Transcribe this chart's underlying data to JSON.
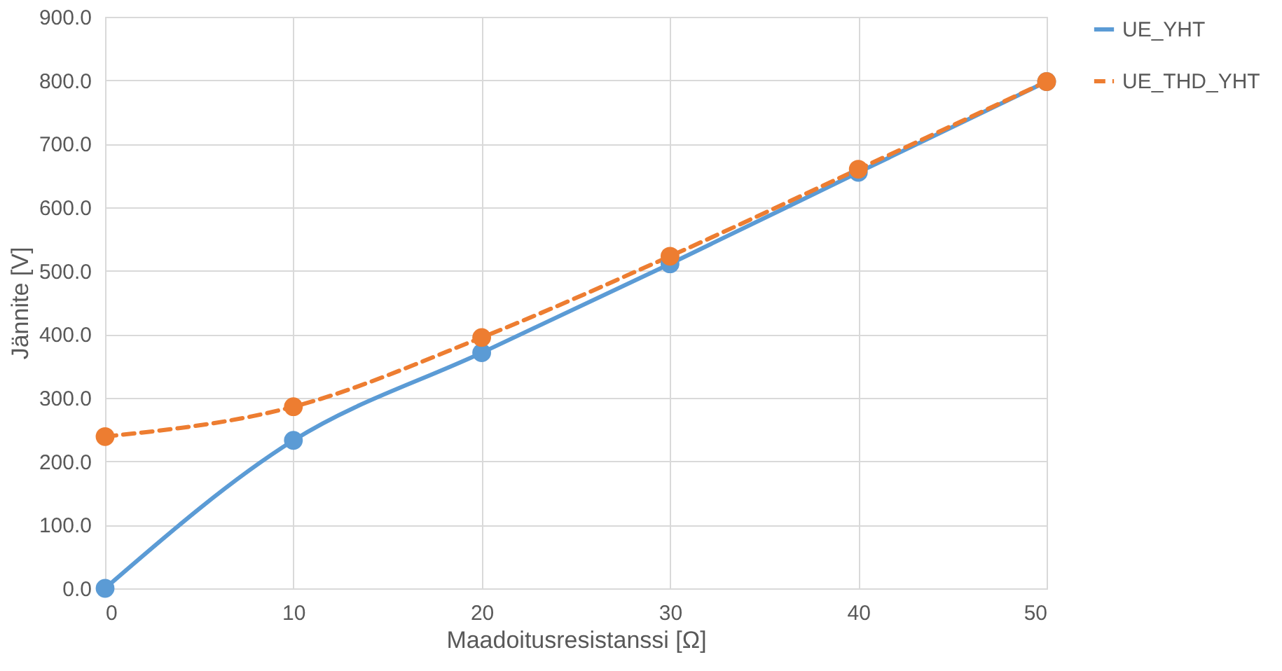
{
  "chart_data": {
    "type": "line",
    "xlabel": "Maadoitusresistanssi [Ω]",
    "ylabel": "Jännite [V]",
    "x": [
      0,
      10,
      20,
      30,
      40,
      50
    ],
    "series": [
      {
        "name": "UE_YHT",
        "color": "#5b9bd5",
        "values": [
          0,
          233,
          371,
          511,
          655,
          798
        ],
        "line_style": "solid"
      },
      {
        "name": "UE_THD_YHT",
        "color": "#ed7d31",
        "values": [
          239,
          286,
          395,
          523,
          660,
          798
        ],
        "line_style": "dashed"
      }
    ],
    "xlim": [
      0,
      50
    ],
    "xticks": [
      0,
      10,
      20,
      30,
      40,
      50
    ],
    "ylim": [
      0,
      900
    ],
    "yticks": [
      {
        "value": 0,
        "label": "0.0"
      },
      {
        "value": 100,
        "label": "100.0"
      },
      {
        "value": 200,
        "label": "200.0"
      },
      {
        "value": 300,
        "label": "300.0"
      },
      {
        "value": 400,
        "label": "400.0"
      },
      {
        "value": 500,
        "label": "500.0"
      },
      {
        "value": 600,
        "label": "600.0"
      },
      {
        "value": 700,
        "label": "700.0"
      },
      {
        "value": 800,
        "label": "800.0"
      },
      {
        "value": 900,
        "label": "900.0"
      }
    ],
    "grid": true,
    "legend": "right",
    "marker": "circle"
  }
}
